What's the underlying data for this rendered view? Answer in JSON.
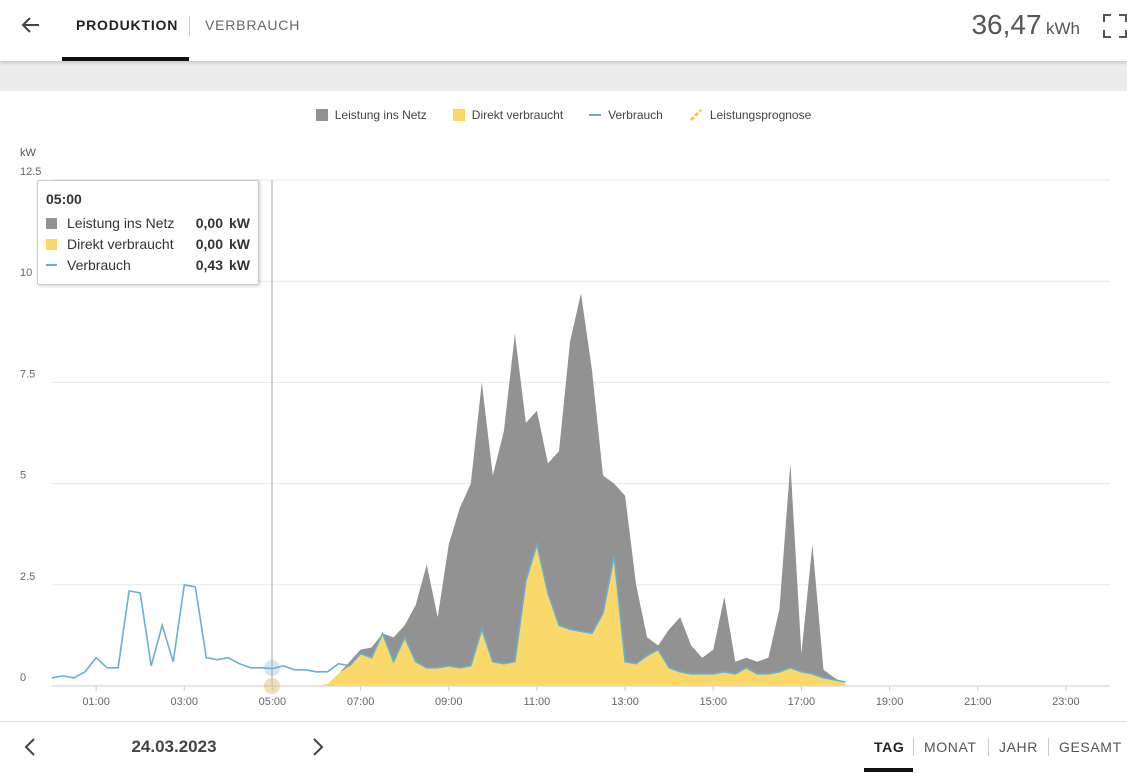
{
  "header": {
    "tabs": [
      "PRODUKTION",
      "VERBRAUCH"
    ],
    "total": {
      "value": "36,47",
      "unit": "kWh"
    }
  },
  "chart_data": {
    "type": "area",
    "y_label": "kW",
    "x": [
      0,
      0.25,
      0.5,
      0.75,
      1,
      1.25,
      1.5,
      1.75,
      2,
      2.25,
      2.5,
      2.75,
      3,
      3.25,
      3.5,
      3.75,
      4,
      4.25,
      4.5,
      4.75,
      5,
      5.25,
      5.5,
      5.75,
      6,
      6.25,
      6.5,
      6.75,
      7,
      7.25,
      7.5,
      7.75,
      8,
      8.25,
      8.5,
      8.75,
      9,
      9.25,
      9.5,
      9.75,
      10,
      10.25,
      10.5,
      10.75,
      11,
      11.25,
      11.5,
      11.75,
      12,
      12.25,
      12.5,
      12.75,
      13,
      13.25,
      13.5,
      13.75,
      14,
      14.25,
      14.5,
      14.75,
      15,
      15.25,
      15.5,
      15.75,
      16,
      16.25,
      16.5,
      16.75,
      17,
      17.25,
      17.5,
      17.75,
      18
    ],
    "series": [
      {
        "name": "Leistung ins Netz",
        "color": "#929292",
        "stack": true,
        "values": [
          0,
          0,
          0,
          0,
          0,
          0,
          0,
          0,
          0,
          0,
          0,
          0,
          0,
          0,
          0,
          0,
          0,
          0,
          0,
          0,
          0,
          0,
          0,
          0,
          0,
          0,
          0,
          0.1,
          0.1,
          0.25,
          0,
          0.6,
          0.3,
          1.4,
          2.55,
          1.25,
          3.0,
          3.95,
          4.5,
          6.1,
          4.6,
          5.75,
          8.1,
          3.9,
          3.3,
          3.2,
          4.3,
          7.1,
          8.35,
          6.5,
          3.4,
          1.8,
          4.1,
          1.95,
          0.45,
          0.1,
          0.95,
          1.35,
          0.7,
          0.4,
          0.6,
          1.85,
          0.3,
          0.25,
          0.3,
          0.4,
          1.55,
          5.05,
          0.45,
          3.2,
          0.2,
          0.05,
          0
        ]
      },
      {
        "name": "Direkt verbraucht",
        "color": "#fad96a",
        "values": [
          0,
          0,
          0,
          0,
          0,
          0,
          0,
          0,
          0,
          0,
          0,
          0,
          0,
          0,
          0,
          0,
          0,
          0,
          0,
          0,
          0,
          0,
          0,
          0,
          0,
          0.05,
          0.3,
          0.5,
          0.8,
          0.7,
          1.3,
          0.6,
          1.2,
          0.6,
          0.45,
          0.45,
          0.5,
          0.45,
          0.5,
          1.4,
          0.6,
          0.55,
          0.6,
          2.6,
          3.5,
          2.3,
          1.5,
          1.4,
          1.35,
          1.3,
          1.8,
          3.2,
          0.6,
          0.55,
          0.75,
          0.9,
          0.45,
          0.35,
          0.3,
          0.3,
          0.3,
          0.35,
          0.3,
          0.45,
          0.3,
          0.3,
          0.35,
          0.45,
          0.35,
          0.3,
          0.2,
          0.15,
          0.05
        ]
      },
      {
        "name": "Verbrauch",
        "color": "#6aafd2",
        "line": true,
        "values": [
          0.2,
          0.25,
          0.2,
          0.35,
          0.7,
          0.45,
          0.45,
          2.35,
          2.3,
          0.5,
          1.5,
          0.6,
          2.5,
          2.45,
          0.7,
          0.65,
          0.7,
          0.55,
          0.45,
          0.45,
          0.43,
          0.5,
          0.4,
          0.4,
          0.35,
          0.35,
          0.55,
          0.5,
          0.8,
          0.7,
          1.3,
          0.6,
          1.2,
          0.6,
          0.45,
          0.45,
          0.5,
          0.45,
          0.5,
          1.4,
          0.6,
          0.55,
          0.6,
          2.6,
          3.5,
          2.3,
          1.5,
          1.4,
          1.35,
          1.3,
          1.8,
          3.2,
          0.6,
          0.55,
          0.75,
          0.9,
          0.45,
          0.35,
          0.3,
          0.3,
          0.3,
          0.35,
          0.3,
          0.45,
          0.3,
          0.3,
          0.35,
          0.45,
          0.35,
          0.3,
          0.2,
          0.15,
          0.1
        ]
      }
    ],
    "forecast_legend": "Leistungsprognose",
    "xlim": [
      0,
      24
    ],
    "xticks": [
      {
        "value": 1,
        "label": "01:00"
      },
      {
        "value": 3,
        "label": "03:00"
      },
      {
        "value": 5,
        "label": "05:00"
      },
      {
        "value": 7,
        "label": "07:00"
      },
      {
        "value": 9,
        "label": "09:00"
      },
      {
        "value": 11,
        "label": "11:00"
      },
      {
        "value": 13,
        "label": "13:00"
      },
      {
        "value": 15,
        "label": "15:00"
      },
      {
        "value": 17,
        "label": "17:00"
      },
      {
        "value": 19,
        "label": "19:00"
      },
      {
        "value": 21,
        "label": "21:00"
      },
      {
        "value": 23,
        "label": "23:00"
      }
    ],
    "ylim": [
      0,
      12.5
    ],
    "yticks": [
      0,
      2.5,
      5,
      7.5,
      10,
      12.5
    ],
    "grid": true
  },
  "tooltip": {
    "title": "05:00",
    "rows": [
      {
        "value": "0,00",
        "unit": "kW"
      },
      {
        "value": "0,00",
        "unit": "kW"
      },
      {
        "value": "0,43",
        "unit": "kW"
      }
    ]
  },
  "footer": {
    "date": "24.03.2023",
    "periods": [
      "TAG",
      "MONAT",
      "JAHR",
      "GESAMT"
    ]
  }
}
